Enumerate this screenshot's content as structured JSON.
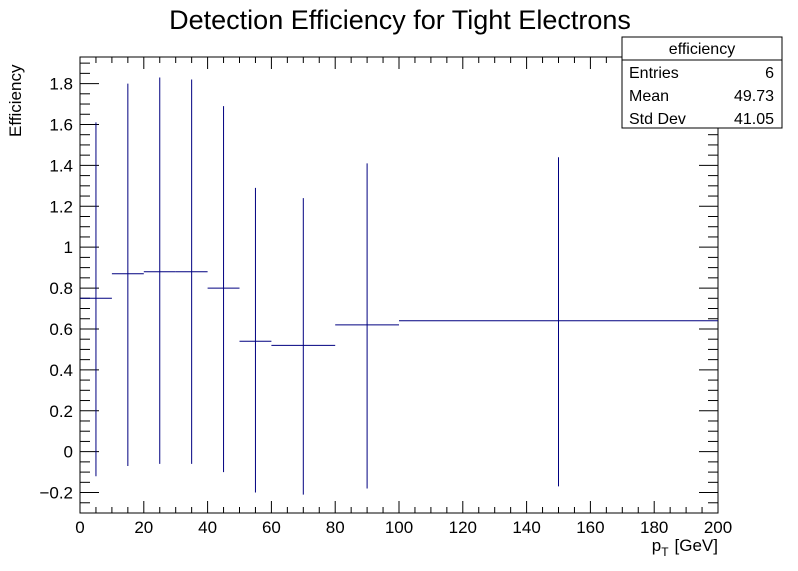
{
  "chart_data": {
    "type": "histogram-errorbar",
    "title": "Detection Efficiency for Tight Electrons",
    "ylabel": "Efficiency",
    "xlabel_main": "p",
    "xlabel_sub": "T",
    "xlabel_unit": "[GeV]",
    "xlim": [
      0,
      200
    ],
    "ylim": [
      -0.3,
      1.93
    ],
    "x_ticks": [
      0,
      20,
      40,
      60,
      80,
      100,
      120,
      140,
      160,
      180,
      200
    ],
    "y_ticks": [
      -0.2,
      0,
      0.2,
      0.4,
      0.6,
      0.8,
      1,
      1.2,
      1.4,
      1.6,
      1.8
    ],
    "x_tick_labels": [
      "0",
      "20",
      "40",
      "60",
      "80",
      "100",
      "120",
      "140",
      "160",
      "180",
      "200"
    ],
    "y_tick_labels": [
      "−0.2",
      "0",
      "0.2",
      "0.4",
      "0.6",
      "0.8",
      "1",
      "1.2",
      "1.4",
      "1.6",
      "1.8"
    ],
    "line_color": "#000080",
    "bins": [
      {
        "x_low": 0,
        "x_high": 10,
        "center": 5,
        "y": 0.75,
        "y_low": -0.12,
        "y_high": 1.61
      },
      {
        "x_low": 10,
        "x_high": 20,
        "center": 15,
        "y": 0.87,
        "y_low": -0.07,
        "y_high": 1.8
      },
      {
        "x_low": 20,
        "x_high": 30,
        "center": 25,
        "y": 0.88,
        "y_low": -0.06,
        "y_high": 1.83
      },
      {
        "x_low": 30,
        "x_high": 40,
        "center": 35,
        "y": 0.88,
        "y_low": -0.06,
        "y_high": 1.82
      },
      {
        "x_low": 40,
        "x_high": 50,
        "center": 45,
        "y": 0.8,
        "y_low": -0.1,
        "y_high": 1.69
      },
      {
        "x_low": 50,
        "x_high": 60,
        "center": 55,
        "y": 0.54,
        "y_low": -0.2,
        "y_high": 1.29
      },
      {
        "x_low": 60,
        "x_high": 80,
        "center": 70,
        "y": 0.52,
        "y_low": -0.21,
        "y_high": 1.24
      },
      {
        "x_low": 80,
        "x_high": 100,
        "center": 90,
        "y": 0.62,
        "y_low": -0.18,
        "y_high": 1.41
      },
      {
        "x_low": 100,
        "x_high": 200,
        "center": 150,
        "y": 0.64,
        "y_low": -0.17,
        "y_high": 1.44
      }
    ],
    "stats_box": {
      "name": "efficiency",
      "rows": [
        {
          "label": "Entries",
          "value": "6"
        },
        {
          "label": "Mean",
          "value": "49.73"
        },
        {
          "label": "Std Dev",
          "value": "41.05"
        }
      ]
    }
  }
}
